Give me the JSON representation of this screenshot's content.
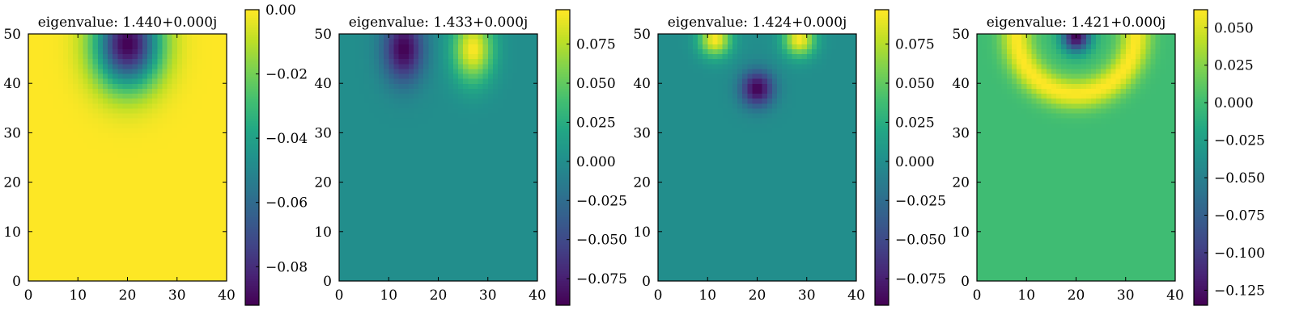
{
  "chart_data": [
    {
      "type": "heatmap",
      "title": "eigenvalue: 1.440+0.000j",
      "xlim": [
        0,
        40
      ],
      "ylim": [
        0,
        50
      ],
      "x_ticks": [
        "0",
        "10",
        "20",
        "30",
        "40"
      ],
      "y_ticks": [
        "0",
        "10",
        "20",
        "30",
        "40",
        "50"
      ],
      "colormap": "viridis",
      "colorbar": {
        "range": [
          -0.092,
          0.0
        ],
        "ticks": [
          {
            "value": 0.0,
            "label": "0.00"
          },
          {
            "value": -0.02,
            "label": "−0.02"
          },
          {
            "value": -0.04,
            "label": "−0.04"
          },
          {
            "value": -0.06,
            "label": "−0.06"
          },
          {
            "value": -0.08,
            "label": "−0.08"
          }
        ]
      },
      "background_value": 0.0,
      "features": [
        {
          "kind": "gaussian",
          "x": 20,
          "y": 48,
          "sx": 6.5,
          "sy": 8.5,
          "amp": -0.092,
          "note": "single lobe at top centre"
        }
      ]
    },
    {
      "type": "heatmap",
      "title": "eigenvalue: 1.433+0.000j",
      "xlim": [
        0,
        40
      ],
      "ylim": [
        0,
        50
      ],
      "x_ticks": [
        "0",
        "10",
        "20",
        "30",
        "40"
      ],
      "y_ticks": [
        "0",
        "10",
        "20",
        "30",
        "40",
        "50"
      ],
      "colormap": "viridis",
      "colorbar": {
        "range": [
          -0.092,
          0.097
        ],
        "ticks": [
          {
            "value": 0.075,
            "label": "0.075"
          },
          {
            "value": 0.05,
            "label": "0.050"
          },
          {
            "value": 0.025,
            "label": "0.025"
          },
          {
            "value": 0.0,
            "label": "0.000"
          },
          {
            "value": -0.025,
            "label": "−0.025"
          },
          {
            "value": -0.05,
            "label": "−0.050"
          },
          {
            "value": -0.075,
            "label": "−0.075"
          }
        ]
      },
      "background_value": 0.0,
      "features": [
        {
          "kind": "gaussian",
          "x": 13,
          "y": 47,
          "sx": 4,
          "sy": 6.5,
          "amp": -0.092
        },
        {
          "kind": "gaussian",
          "x": 27,
          "y": 47,
          "sx": 4,
          "sy": 6.5,
          "amp": 0.097
        }
      ]
    },
    {
      "type": "heatmap",
      "title": "eigenvalue: 1.424+0.000j",
      "xlim": [
        0,
        40
      ],
      "ylim": [
        0,
        50
      ],
      "x_ticks": [
        "0",
        "10",
        "20",
        "30",
        "40"
      ],
      "y_ticks": [
        "0",
        "10",
        "20",
        "30",
        "40",
        "50"
      ],
      "colormap": "viridis",
      "colorbar": {
        "range": [
          -0.092,
          0.097
        ],
        "ticks": [
          {
            "value": 0.075,
            "label": "0.075"
          },
          {
            "value": 0.05,
            "label": "0.050"
          },
          {
            "value": 0.025,
            "label": "0.025"
          },
          {
            "value": 0.0,
            "label": "0.000"
          },
          {
            "value": -0.025,
            "label": "−0.025"
          },
          {
            "value": -0.05,
            "label": "−0.050"
          },
          {
            "value": -0.075,
            "label": "−0.075"
          }
        ]
      },
      "background_value": 0.0,
      "features": [
        {
          "kind": "gaussian",
          "x": 11.5,
          "y": 49,
          "sx": 3.2,
          "sy": 3.5,
          "amp": 0.097
        },
        {
          "kind": "gaussian",
          "x": 28.5,
          "y": 49,
          "sx": 3.2,
          "sy": 3.5,
          "amp": 0.097
        },
        {
          "kind": "gaussian",
          "x": 20,
          "y": 39,
          "sx": 3.3,
          "sy": 3.6,
          "amp": -0.092
        }
      ]
    },
    {
      "type": "heatmap",
      "title": "eigenvalue: 1.421+0.000j",
      "xlim": [
        0,
        40
      ],
      "ylim": [
        0,
        50
      ],
      "x_ticks": [
        "0",
        "10",
        "20",
        "30",
        "40"
      ],
      "y_ticks": [
        "0",
        "10",
        "20",
        "30",
        "40",
        "50"
      ],
      "colormap": "viridis",
      "colorbar": {
        "range": [
          -0.135,
          0.062
        ],
        "ticks": [
          {
            "value": 0.05,
            "label": "0.050"
          },
          {
            "value": 0.025,
            "label": "0.025"
          },
          {
            "value": 0.0,
            "label": "0.000"
          },
          {
            "value": -0.025,
            "label": "−0.025"
          },
          {
            "value": -0.05,
            "label": "−0.050"
          },
          {
            "value": -0.075,
            "label": "−0.075"
          },
          {
            "value": -0.1,
            "label": "−0.100"
          },
          {
            "value": -0.125,
            "label": "−0.125"
          }
        ]
      },
      "background_value": 0.0,
      "features": [
        {
          "kind": "gaussian",
          "x": 20,
          "y": 49.5,
          "sx": 2.8,
          "sy": 3.0,
          "amp": -0.135
        },
        {
          "kind": "ring",
          "x": 20,
          "y": 50,
          "r": 12,
          "w": 3.2,
          "amp": 0.062
        }
      ]
    }
  ]
}
